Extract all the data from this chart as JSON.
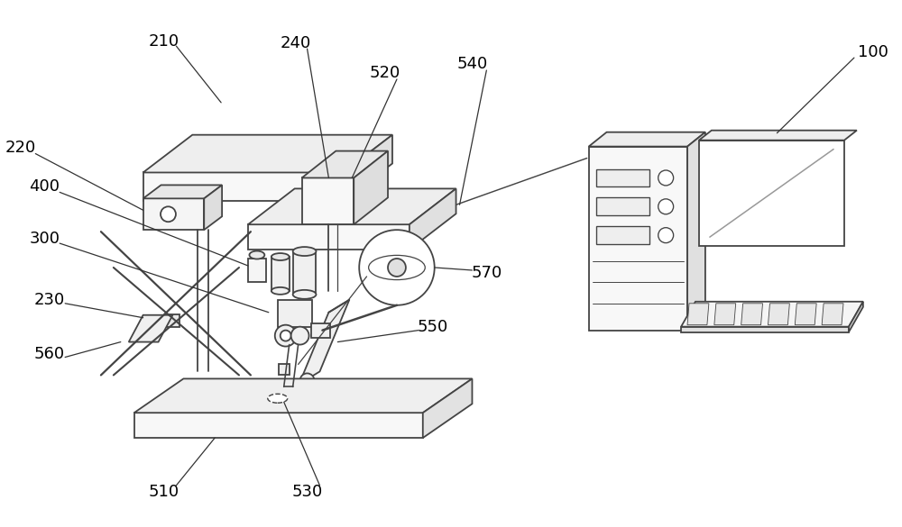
{
  "bg_color": "#ffffff",
  "lc": "#444444",
  "lw": 1.3,
  "fig_width": 10.0,
  "fig_height": 5.85,
  "label_fontsize": 13
}
